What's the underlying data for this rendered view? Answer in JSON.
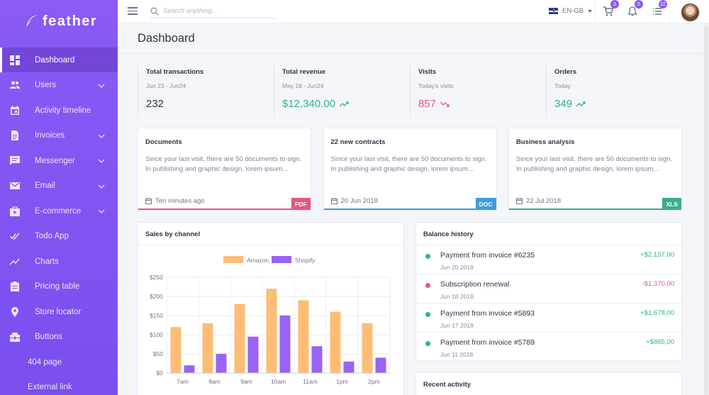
{
  "app": {
    "name": "feather"
  },
  "sidebar": {
    "items": [
      {
        "label": "Dashboard",
        "icon": "dashboard-icon",
        "active": true,
        "expandable": false
      },
      {
        "label": "Users",
        "icon": "users-icon",
        "expandable": true
      },
      {
        "label": "Activity timeline",
        "icon": "calendar-icon",
        "expandable": false
      },
      {
        "label": "Invoices",
        "icon": "document-icon",
        "expandable": true
      },
      {
        "label": "Messenger",
        "icon": "chat-icon",
        "expandable": true
      },
      {
        "label": "Email",
        "icon": "mail-icon",
        "expandable": true
      },
      {
        "label": "E-commerce",
        "icon": "shop-icon",
        "expandable": true
      },
      {
        "label": "Todo App",
        "icon": "double-check-icon",
        "expandable": false
      },
      {
        "label": "Charts",
        "icon": "trend-icon",
        "expandable": false
      },
      {
        "label": "Pricing table",
        "icon": "clipboard-icon",
        "expandable": false
      },
      {
        "label": "Store locator",
        "icon": "location-pin-icon",
        "expandable": false
      },
      {
        "label": "Buttons",
        "icon": "widgets-icon",
        "expandable": false
      },
      {
        "label": "404 page",
        "icon": "",
        "expandable": false
      },
      {
        "label": "External link",
        "icon": "",
        "expandable": false
      }
    ]
  },
  "topbar": {
    "search_placeholder": "Search anything...",
    "language": "EN-GB",
    "cart_count": "3",
    "notifications_count": "5",
    "list_count": "22"
  },
  "page": {
    "title": "Dashboard"
  },
  "stats": [
    {
      "label": "Total transactions",
      "sub": "Jun 23 - Jun24",
      "value": "232",
      "trend": "none",
      "color": "#2f3446"
    },
    {
      "label": "Total revenue",
      "sub": "May 18 - Jun24",
      "value": "$12,340.00",
      "trend": "up",
      "color": "#2bb58a"
    },
    {
      "label": "Visits",
      "sub": "Today's visits",
      "value": "857",
      "trend": "down",
      "color": "#e8557b"
    },
    {
      "label": "Orders",
      "sub": "Today",
      "value": "349",
      "trend": "up",
      "color": "#2bb58a"
    }
  ],
  "doc_cards": [
    {
      "title": "Documents",
      "text": "Since your last visit, there are 50 documents to sign. In publishing and graphic design, lorem ipsum...",
      "date": "Ten minutes ago",
      "tag": "PDF",
      "color": "#e8557b"
    },
    {
      "title": "22 new contracts",
      "text": "Since your last visit, there are 50 documents to sign. In publishing and graphic design, lorem ipsum...",
      "date": "20 Jun 2018",
      "tag": "DOC",
      "color": "#3d9be0"
    },
    {
      "title": "Business analysis",
      "text": "Since your last visit, there are 50 documents to sign. In publishing and graphic design, lorem ipsum...",
      "date": "22 Jul 2018",
      "tag": "XLS",
      "color": "#3aae8e"
    }
  ],
  "sales": {
    "title": "Sales by channel"
  },
  "chart_data": {
    "type": "bar",
    "title": "Sales by channel",
    "categories": [
      "7am",
      "8am",
      "9am",
      "10am",
      "11am",
      "1pm",
      "2pm"
    ],
    "series": [
      {
        "name": "Amazon",
        "color": "#fdbd74",
        "values": [
          120,
          130,
          180,
          220,
          190,
          160,
          130
        ]
      },
      {
        "name": "Shopify",
        "color": "#9a62f5",
        "values": [
          20,
          50,
          95,
          150,
          70,
          30,
          40
        ]
      }
    ],
    "ylim": [
      0,
      250
    ],
    "yticks": [
      "$0",
      "$50",
      "$100",
      "$150",
      "$200",
      "$250"
    ],
    "legend": "top"
  },
  "balance": {
    "title": "Balance history",
    "rows": [
      {
        "name": "Payment from invoice #6235",
        "date": "Jun 20 2018",
        "amount": "+$2.137,00",
        "color": "#2bb58a"
      },
      {
        "name": "Subscription renewal",
        "date": "Jun 18 2018",
        "amount": "-$1.370,00",
        "color": "#e8557b"
      },
      {
        "name": "Payment from invoice #5893",
        "date": "Jun 17 2018",
        "amount": "+$1.678,00",
        "color": "#2bb58a"
      },
      {
        "name": "Payment from invoice #5789",
        "date": "Jun 11 2018",
        "amount": "+$865,00",
        "color": "#2bb58a"
      }
    ]
  },
  "recent": {
    "title": "Recent activity"
  }
}
